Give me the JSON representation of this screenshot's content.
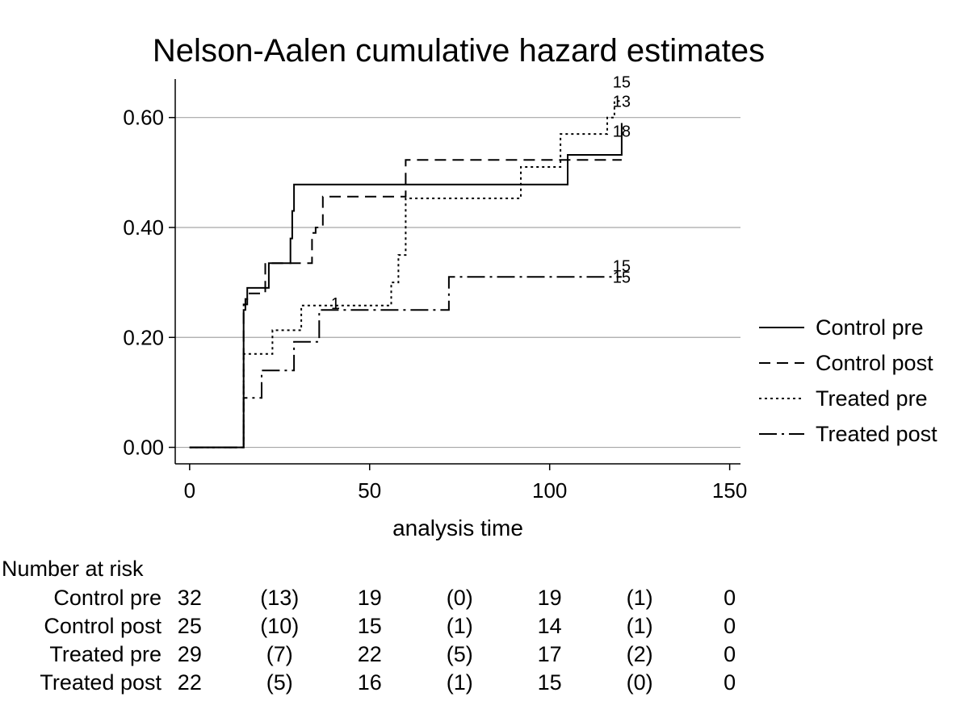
{
  "chart_data": {
    "type": "line",
    "step": true,
    "title": "Nelson-Aalen cumulative hazard estimates",
    "xlabel": "analysis time",
    "ylabel": "",
    "xlim": [
      -4,
      153
    ],
    "ylim": [
      -0.03,
      0.67
    ],
    "x_ticks": [
      0,
      50,
      100,
      150
    ],
    "x_tick_labels": [
      "0",
      "50",
      "100",
      "150"
    ],
    "y_ticks": [
      0,
      0.2,
      0.4,
      0.6
    ],
    "y_tick_labels": [
      "0.00",
      "0.20",
      "0.40",
      "0.60"
    ],
    "grid": "horizontal",
    "legend_position": "right",
    "series": [
      {
        "name": "Control pre",
        "style": "solid",
        "x": [
          0,
          15,
          15.5,
          16,
          21,
          22,
          27,
          28,
          28.5,
          29,
          105,
          120
        ],
        "y": [
          0,
          0.25,
          0.27,
          0.29,
          0.29,
          0.335,
          0.335,
          0.38,
          0.43,
          0.478,
          0.532,
          0.59
        ],
        "end_label": "18",
        "end_label_at": [
          120,
          0.575
        ]
      },
      {
        "name": "Control post",
        "style": "dash",
        "x": [
          0,
          15,
          16,
          21,
          34,
          35,
          37,
          60,
          105,
          120
        ],
        "y": [
          0,
          0.26,
          0.28,
          0.335,
          0.39,
          0.4,
          0.456,
          0.523,
          0.523,
          0.523
        ],
        "end_label": "",
        "end_label_at": [
          120,
          0.523
        ]
      },
      {
        "name": "Treated pre",
        "style": "dot",
        "x": [
          0,
          15,
          16,
          23,
          31,
          56,
          58,
          60,
          92,
          103,
          116,
          118,
          120
        ],
        "y": [
          0,
          0.17,
          0.17,
          0.213,
          0.258,
          0.3,
          0.35,
          0.453,
          0.51,
          0.57,
          0.6,
          0.63,
          0.63
        ],
        "end_label": "13",
        "end_label_at": [
          120,
          0.63
        ]
      },
      {
        "name": "Treated post",
        "style": "dashdot",
        "x": [
          0,
          15,
          20,
          29,
          36,
          41,
          72,
          120
        ],
        "y": [
          0,
          0.09,
          0.14,
          0.192,
          0.25,
          0.25,
          0.31,
          0.31
        ],
        "end_label": "15",
        "end_label_at": [
          120,
          0.31
        ]
      }
    ],
    "annotations": [
      {
        "text": "1",
        "x": 40.5,
        "y": 0.262
      },
      {
        "text": "15",
        "x": 120,
        "y": 0.665
      },
      {
        "text": "15",
        "x": 120,
        "y": 0.33
      }
    ],
    "risk_table": {
      "title": "Number at risk",
      "times": [
        0,
        25,
        50,
        75,
        100,
        125,
        150
      ],
      "rows": [
        {
          "label": "Control pre",
          "values": [
            "32",
            "(13)",
            "19",
            "(0)",
            "19",
            "(1)",
            "0"
          ]
        },
        {
          "label": "Control post",
          "values": [
            "25",
            "(10)",
            "15",
            "(1)",
            "14",
            "(1)",
            "0"
          ]
        },
        {
          "label": "Treated pre",
          "values": [
            "29",
            "(7)",
            "22",
            "(5)",
            "17",
            "(2)",
            "0"
          ]
        },
        {
          "label": "Treated post",
          "values": [
            "22",
            "(5)",
            "16",
            "(1)",
            "15",
            "(0)",
            "0"
          ]
        }
      ]
    }
  }
}
